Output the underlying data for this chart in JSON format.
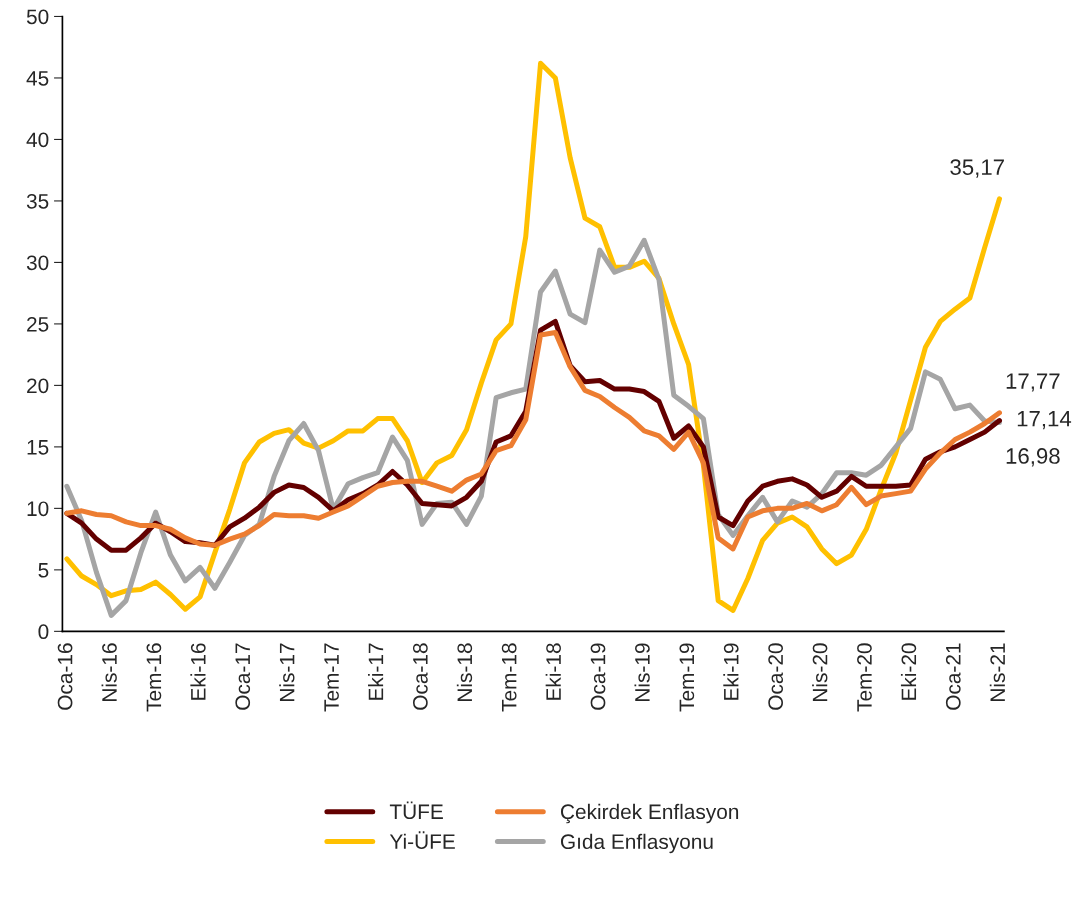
{
  "chart_data": {
    "type": "line",
    "categories": [
      "Oca-16",
      null,
      null,
      "Nis-16",
      null,
      null,
      "Tem-16",
      null,
      null,
      "Eki-16",
      null,
      null,
      "Oca-17",
      null,
      null,
      "Nis-17",
      null,
      null,
      "Tem-17",
      null,
      null,
      "Eki-17",
      null,
      null,
      "Oca-18",
      null,
      null,
      "Nis-18",
      null,
      null,
      "Tem-18",
      null,
      null,
      "Eki-18",
      null,
      null,
      "Oca-19",
      null,
      null,
      "Nis-19",
      null,
      null,
      "Tem-19",
      null,
      null,
      "Eki-19",
      null,
      null,
      "Oca-20",
      null,
      null,
      "Nis-20",
      null,
      null,
      "Tem-20",
      null,
      null,
      "Eki-20",
      null,
      null,
      "Oca-21",
      null,
      null,
      "Nis-21"
    ],
    "series": [
      {
        "name": "TÜFE",
        "color": "#630000",
        "values": [
          9.6,
          8.8,
          7.5,
          6.6,
          6.6,
          7.6,
          8.8,
          8.1,
          7.3,
          7.2,
          7.0,
          8.5,
          9.2,
          10.1,
          11.3,
          11.9,
          11.7,
          10.9,
          9.8,
          10.7,
          11.2,
          11.9,
          13.0,
          11.9,
          10.4,
          10.3,
          10.2,
          10.9,
          12.2,
          15.4,
          15.9,
          17.9,
          24.5,
          25.2,
          21.6,
          20.3,
          20.4,
          19.7,
          19.7,
          19.5,
          18.7,
          15.7,
          16.7,
          15.0,
          9.3,
          8.6,
          10.6,
          11.8,
          12.2,
          12.4,
          11.9,
          10.9,
          11.4,
          12.6,
          11.8,
          11.8,
          11.8,
          11.9,
          14.0,
          14.6,
          15.0,
          15.6,
          16.2,
          17.14
        ],
        "value_labels": [
          null,
          null,
          null,
          null,
          null,
          null,
          null,
          null,
          null,
          null,
          null,
          null,
          null,
          null,
          null,
          null,
          null,
          null,
          null,
          null,
          null,
          null,
          null,
          null,
          null,
          null,
          null,
          null,
          null,
          null,
          null,
          null,
          null,
          null,
          null,
          null,
          null,
          null,
          null,
          null,
          null,
          null,
          null,
          null,
          null,
          null,
          null,
          null,
          null,
          null,
          null,
          null,
          null,
          null,
          null,
          null,
          null,
          null,
          null,
          null,
          null,
          null,
          null,
          "17,14"
        ]
      },
      {
        "name": "Çekirdek Enflasyon",
        "color": "#ED7D31",
        "values": [
          9.6,
          9.8,
          9.5,
          9.4,
          8.9,
          8.6,
          8.6,
          8.3,
          7.6,
          7.1,
          7.0,
          7.5,
          7.9,
          8.6,
          9.5,
          9.4,
          9.4,
          9.2,
          9.7,
          10.2,
          11.0,
          11.8,
          12.1,
          12.2,
          12.2,
          11.8,
          11.4,
          12.3,
          12.8,
          14.7,
          15.1,
          17.2,
          24.1,
          24.3,
          21.5,
          19.6,
          19.1,
          18.2,
          17.4,
          16.3,
          15.9,
          14.8,
          16.2,
          13.7,
          7.6,
          6.7,
          9.3,
          9.8,
          10.0,
          10.0,
          10.4,
          9.8,
          10.3,
          11.7,
          10.3,
          11.0,
          11.2,
          11.4,
          13.2,
          14.5,
          15.6,
          16.2,
          16.9,
          17.77
        ],
        "value_labels": [
          null,
          null,
          null,
          null,
          null,
          null,
          null,
          null,
          null,
          null,
          null,
          null,
          null,
          null,
          null,
          null,
          null,
          null,
          null,
          null,
          null,
          null,
          null,
          null,
          null,
          null,
          null,
          null,
          null,
          null,
          null,
          null,
          null,
          null,
          null,
          null,
          null,
          null,
          null,
          null,
          null,
          null,
          null,
          null,
          null,
          null,
          null,
          null,
          null,
          null,
          null,
          null,
          null,
          null,
          null,
          null,
          null,
          null,
          null,
          null,
          null,
          null,
          null,
          "17,77"
        ]
      },
      {
        "name": "Yi-ÜFE",
        "color": "#FFC000",
        "values": [
          5.9,
          4.5,
          3.8,
          2.9,
          3.3,
          3.4,
          4.0,
          3.0,
          1.8,
          2.8,
          6.4,
          9.9,
          13.7,
          15.4,
          16.1,
          16.4,
          15.3,
          14.9,
          15.5,
          16.3,
          16.3,
          17.3,
          17.3,
          15.5,
          12.1,
          13.7,
          14.3,
          16.4,
          20.2,
          23.7,
          25.0,
          32.1,
          46.2,
          45.0,
          38.5,
          33.6,
          32.9,
          29.6,
          29.6,
          30.1,
          28.7,
          25.0,
          21.7,
          13.5,
          2.5,
          1.7,
          4.3,
          7.4,
          8.8,
          9.3,
          8.5,
          6.7,
          5.5,
          6.2,
          8.3,
          11.5,
          14.5,
          18.8,
          23.1,
          25.2,
          26.2,
          27.1,
          31.2,
          35.17
        ],
        "value_labels": [
          null,
          null,
          null,
          null,
          null,
          null,
          null,
          null,
          null,
          null,
          null,
          null,
          null,
          null,
          null,
          null,
          null,
          null,
          null,
          null,
          null,
          null,
          null,
          null,
          null,
          null,
          null,
          null,
          null,
          null,
          null,
          null,
          null,
          null,
          null,
          null,
          null,
          null,
          null,
          null,
          null,
          null,
          null,
          null,
          null,
          null,
          null,
          null,
          null,
          null,
          null,
          null,
          null,
          null,
          null,
          null,
          null,
          null,
          null,
          null,
          null,
          null,
          null,
          "35,17"
        ]
      },
      {
        "name": "Gıda Enflasyonu",
        "color": "#A5A5A5",
        "values": [
          11.8,
          9.0,
          4.8,
          1.3,
          2.5,
          6.4,
          9.7,
          6.2,
          4.1,
          5.2,
          3.5,
          5.6,
          7.8,
          8.7,
          12.6,
          15.5,
          16.9,
          14.7,
          9.9,
          12.0,
          12.5,
          12.9,
          15.8,
          13.9,
          8.7,
          10.4,
          10.5,
          8.7,
          11.0,
          19.0,
          19.4,
          19.7,
          27.6,
          29.3,
          25.8,
          25.1,
          31.0,
          29.2,
          29.7,
          31.8,
          28.6,
          19.2,
          18.3,
          17.3,
          9.5,
          7.8,
          9.4,
          10.9,
          8.9,
          10.6,
          10.1,
          11.2,
          12.9,
          12.9,
          12.7,
          13.5,
          15.0,
          16.5,
          21.1,
          20.5,
          18.1,
          18.4,
          17.1,
          16.98
        ],
        "value_labels": [
          null,
          null,
          null,
          null,
          null,
          null,
          null,
          null,
          null,
          null,
          null,
          null,
          null,
          null,
          null,
          null,
          null,
          null,
          null,
          null,
          null,
          null,
          null,
          null,
          null,
          null,
          null,
          null,
          null,
          null,
          null,
          null,
          null,
          null,
          null,
          null,
          null,
          null,
          null,
          null,
          null,
          null,
          null,
          null,
          null,
          null,
          null,
          null,
          null,
          null,
          null,
          null,
          null,
          null,
          null,
          null,
          null,
          null,
          null,
          null,
          null,
          null,
          null,
          "16,98"
        ]
      }
    ],
    "ylim": [
      0,
      50
    ],
    "yticks": [
      0,
      5,
      10,
      15,
      20,
      25,
      30,
      35,
      40,
      45,
      50
    ],
    "grid": false,
    "legend": "bottom",
    "marker": "none",
    "line_style": "solid"
  }
}
